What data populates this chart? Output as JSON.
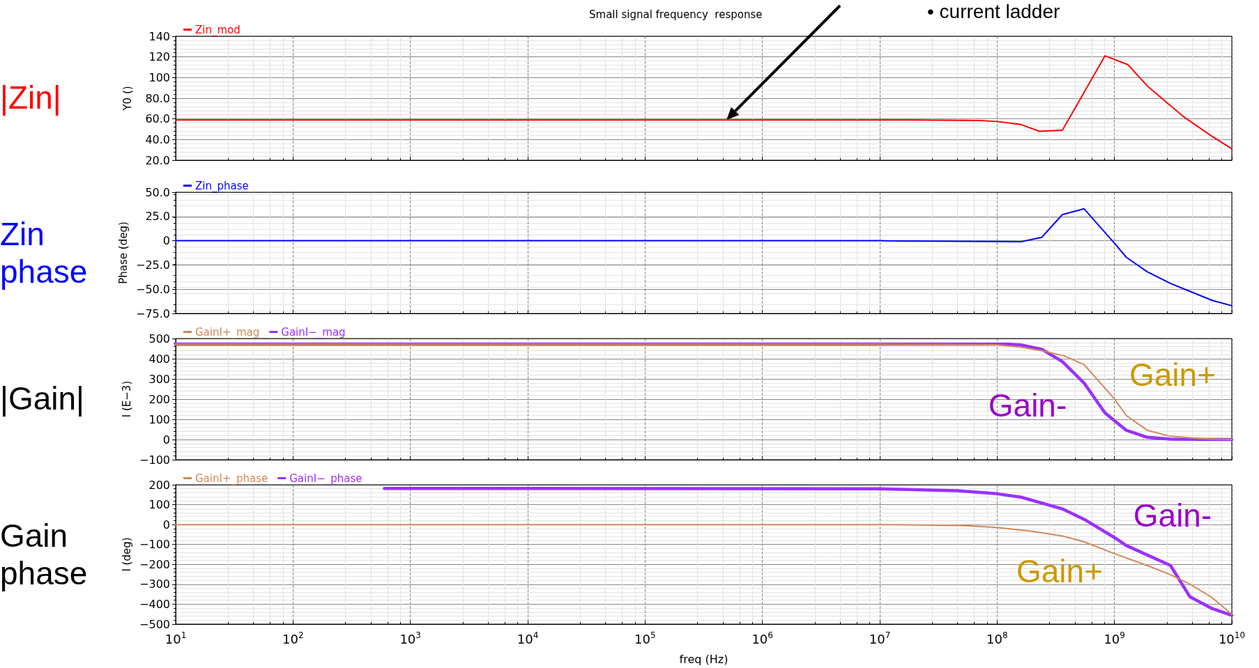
{
  "chart_data": [
    {
      "type": "line",
      "title": "Small signal frequency  response",
      "ylabel": "Y0 ()",
      "legend": "top left",
      "grid": true,
      "marker": "none",
      "line_style": "solid",
      "log": "x",
      "tick_labels": "y",
      "xlim": [
        10,
        10000000000
      ],
      "xticks": [
        {
          "value": 10,
          "label": "10$^{1}$"
        },
        {
          "value": 100,
          "label": "10$^{2}$"
        },
        {
          "value": 1000,
          "label": "10$^{3}$"
        },
        {
          "value": 10000,
          "label": "10$^{4}$"
        },
        {
          "value": 100000,
          "label": "10$^{5}$"
        },
        {
          "value": 1000000,
          "label": "10$^{6}$"
        },
        {
          "value": 10000000,
          "label": "10$^{7}$"
        },
        {
          "value": 100000000,
          "label": "10$^{8}$"
        },
        {
          "value": 1000000000,
          "label": "10$^{9}$"
        },
        {
          "value": 10000000000,
          "label": "10$^{10}$"
        }
      ],
      "ylim": [
        20,
        140
      ],
      "yticks": [
        {
          "value": 20,
          "label": "20.0"
        },
        {
          "value": 40,
          "label": "40.0"
        },
        {
          "value": 60,
          "label": "60.0"
        },
        {
          "value": 80,
          "label": "80.0"
        },
        100,
        120,
        140
      ],
      "annotations": [
        "|Zin|",
        "• current ladder"
      ],
      "series": [
        {
          "name": "Zin_mod",
          "color": "#ff0000",
          "x": [
            10,
            20000000,
            70000000,
            100000000,
            160000000,
            230000000,
            360000000,
            830000000,
            1300000000,
            1900000000,
            2850000000,
            4000000000,
            6800000000,
            10000000000
          ],
          "values": [
            59,
            59,
            58.5,
            57.5,
            54.5,
            48,
            49,
            121,
            112.5,
            92,
            75,
            61,
            43,
            31
          ]
        }
      ]
    },
    {
      "type": "line",
      "ylabel": "Phase (deg)",
      "legend": "top left",
      "grid": true,
      "marker": "none",
      "line_style": "solid",
      "log": "x",
      "tick_labels": "y",
      "xlim": [
        10,
        10000000000
      ],
      "xticks": [
        {
          "value": 10,
          "label": "10$^{1}$"
        },
        {
          "value": 100,
          "label": "10$^{2}$"
        },
        {
          "value": 1000,
          "label": "10$^{3}$"
        },
        {
          "value": 10000,
          "label": "10$^{4}$"
        },
        {
          "value": 100000,
          "label": "10$^{5}$"
        },
        {
          "value": 1000000,
          "label": "10$^{6}$"
        },
        {
          "value": 10000000,
          "label": "10$^{7}$"
        },
        {
          "value": 100000000,
          "label": "10$^{8}$"
        },
        {
          "value": 1000000000,
          "label": "10$^{9}$"
        },
        {
          "value": 10000000000,
          "label": "10$^{10}$"
        }
      ],
      "ylim": [
        -75,
        50
      ],
      "yticks": [
        {
          "value": -75,
          "label": "−75.0"
        },
        {
          "value": -50,
          "label": "−50.0"
        },
        {
          "value": -25,
          "label": "−25.0"
        },
        0,
        {
          "value": 25,
          "label": "25.0"
        },
        {
          "value": 50,
          "label": "50.0"
        }
      ],
      "annotations": [
        "Zin phase"
      ],
      "series": [
        {
          "name": "Zin_phase",
          "color": "#0000ff",
          "x": [
            10,
            10000000,
            160000000,
            240000000,
            360000000,
            550000000,
            1000000000,
            1260000000,
            1900000000,
            3000000000,
            6800000000,
            10000000000
          ],
          "values": [
            0,
            0,
            -1,
            3.5,
            27,
            33,
            -2.5,
            -17,
            -32,
            -44,
            -61.5,
            -67
          ]
        }
      ]
    },
    {
      "type": "line",
      "ylabel": "I (E−3)",
      "legend": "top left",
      "grid": true,
      "marker": "none",
      "line_style": "solid",
      "log": "x",
      "tick_labels": "y",
      "xlim": [
        10,
        10000000000
      ],
      "xticks": [
        {
          "value": 10,
          "label": "10$^{1}$"
        },
        {
          "value": 100,
          "label": "10$^{2}$"
        },
        {
          "value": 1000,
          "label": "10$^{3}$"
        },
        {
          "value": 10000,
          "label": "10$^{4}$"
        },
        {
          "value": 100000,
          "label": "10$^{5}$"
        },
        {
          "value": 1000000,
          "label": "10$^{6}$"
        },
        {
          "value": 10000000,
          "label": "10$^{7}$"
        },
        {
          "value": 100000000,
          "label": "10$^{8}$"
        },
        {
          "value": 1000000000,
          "label": "10$^{9}$"
        },
        {
          "value": 10000000000,
          "label": "10$^{10}$"
        }
      ],
      "ylim": [
        -100,
        500
      ],
      "yticks": [
        {
          "value": -100,
          "label": "−100"
        },
        0,
        100,
        200,
        300,
        400,
        500
      ],
      "annotations": [
        "|Gain|",
        "Gain+",
        "Gain-"
      ],
      "series": [
        {
          "name": "GainI+_mag",
          "color": "#d2875a",
          "x": [
            10,
            10000000,
            100000000,
            160000000,
            240000000,
            370000000,
            550000000,
            1000000000,
            1260000000,
            1900000000,
            3000000000,
            5400000000,
            10000000000
          ],
          "values": [
            472,
            472,
            469,
            457,
            440,
            415,
            371,
            201,
            119,
            46,
            16,
            4,
            0
          ]
        },
        {
          "name": "GainI−_mag",
          "color": "#9b30ff",
          "x": [
            10,
            126000000,
            160000000,
            240000000,
            360000000,
            550000000,
            830000000,
            1260000000,
            1900000000,
            3000000000,
            5400000000,
            10000000000
          ],
          "values": [
            472,
            472,
            468,
            447,
            386,
            280,
            132,
            46,
            11,
            2,
            1,
            0
          ]
        }
      ]
    },
    {
      "type": "line",
      "xlabel": "freq (Hz)",
      "ylabel": "I (deg)",
      "legend": "top left",
      "grid": true,
      "marker": "none",
      "line_style": "solid",
      "log": "x",
      "xlim": [
        10,
        10000000000
      ],
      "xticks": [
        {
          "value": 10,
          "label": "10$^{1}$"
        },
        {
          "value": 100,
          "label": "10$^{2}$"
        },
        {
          "value": 1000,
          "label": "10$^{3}$"
        },
        {
          "value": 10000,
          "label": "10$^{4}$"
        },
        {
          "value": 100000,
          "label": "10$^{5}$"
        },
        {
          "value": 1000000,
          "label": "10$^{6}$"
        },
        {
          "value": 10000000,
          "label": "10$^{7}$"
        },
        {
          "value": 100000000,
          "label": "10$^{8}$"
        },
        {
          "value": 1000000000,
          "label": "10$^{9}$"
        },
        {
          "value": 10000000000,
          "label": "10$^{10}$"
        }
      ],
      "ylim": [
        -500,
        200
      ],
      "yticks": [
        {
          "value": -500,
          "label": "−500"
        },
        {
          "value": -400,
          "label": "−400"
        },
        {
          "value": -300,
          "label": "−300"
        },
        {
          "value": -200,
          "label": "−200"
        },
        {
          "value": -100,
          "label": "−100"
        },
        0,
        100,
        200
      ],
      "annotations": [
        "Gain phase",
        "Gain+",
        "Gain-"
      ],
      "series": [
        {
          "name": "GainI+_phase",
          "color": "#d2875a",
          "x": [
            10,
            12600000,
            51000000,
            100000000,
            200000000,
            360000000,
            550000000,
            1000000000,
            1900000000,
            3000000000,
            4400000000,
            6800000000,
            10000000000
          ],
          "values": [
            0,
            0,
            -5,
            -14,
            -34,
            -57,
            -86,
            -146,
            -205,
            -252,
            -299,
            -367,
            -451
          ]
        },
        {
          "name": "GainI−_phase",
          "color": "#9b30ff",
          "x": [
            600,
            10000000,
            46000000,
            100000000,
            160000000,
            360000000,
            550000000,
            1000000000,
            1260000000,
            3000000000,
            4400000000,
            6800000000,
            10000000000
          ],
          "values": [
            182,
            180,
            170,
            155,
            138,
            79,
            27,
            -65,
            -105,
            -205,
            -363,
            -422,
            -456
          ]
        }
      ]
    }
  ]
}
